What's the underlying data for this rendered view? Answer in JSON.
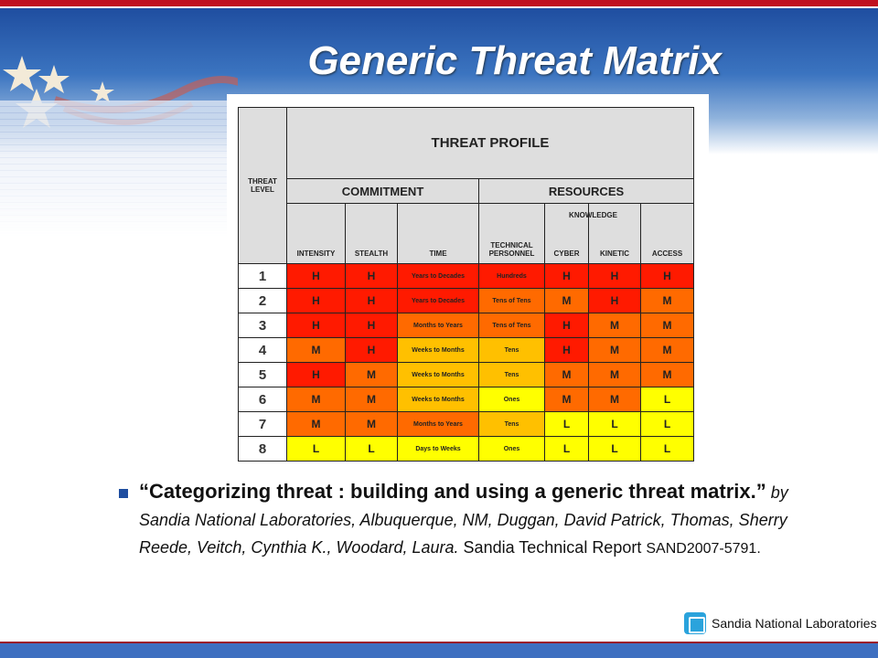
{
  "slide": {
    "title": "Generic Threat Matrix"
  },
  "matrix": {
    "threat_profile": "THREAT PROFILE",
    "threat_level": "THREAT LEVEL",
    "commitment": "COMMITMENT",
    "resources": "RESOURCES",
    "knowledge": "KNOWLEDGE",
    "columns": [
      "INTENSITY",
      "STEALTH",
      "TIME",
      "TECHNICAL PERSONNEL",
      "CYBER",
      "KINETIC",
      "ACCESS"
    ],
    "colors": {
      "red": "#ff1a00",
      "orange": "#ff6a00",
      "amber": "#ffc000",
      "yellow": "#ffff00"
    },
    "rows": [
      {
        "level": "1",
        "cells": [
          "H",
          "H",
          "Years to Decades",
          "Hundreds",
          "H",
          "H",
          "H"
        ],
        "fills": [
          "red",
          "red",
          "red",
          "red",
          "red",
          "red",
          "red"
        ]
      },
      {
        "level": "2",
        "cells": [
          "H",
          "H",
          "Years to Decades",
          "Tens of Tens",
          "M",
          "H",
          "M"
        ],
        "fills": [
          "red",
          "red",
          "red",
          "orange",
          "orange",
          "red",
          "orange"
        ]
      },
      {
        "level": "3",
        "cells": [
          "H",
          "H",
          "Months to Years",
          "Tens of Tens",
          "H",
          "M",
          "M"
        ],
        "fills": [
          "red",
          "red",
          "orange",
          "orange",
          "red",
          "orange",
          "orange"
        ]
      },
      {
        "level": "4",
        "cells": [
          "M",
          "H",
          "Weeks to Months",
          "Tens",
          "H",
          "M",
          "M"
        ],
        "fills": [
          "orange",
          "red",
          "amber",
          "amber",
          "red",
          "orange",
          "orange"
        ]
      },
      {
        "level": "5",
        "cells": [
          "H",
          "M",
          "Weeks to Months",
          "Tens",
          "M",
          "M",
          "M"
        ],
        "fills": [
          "red",
          "orange",
          "amber",
          "amber",
          "orange",
          "orange",
          "orange"
        ]
      },
      {
        "level": "6",
        "cells": [
          "M",
          "M",
          "Weeks to Months",
          "Ones",
          "M",
          "M",
          "L"
        ],
        "fills": [
          "orange",
          "orange",
          "amber",
          "yellow",
          "orange",
          "orange",
          "yellow"
        ]
      },
      {
        "level": "7",
        "cells": [
          "M",
          "M",
          "Months to Years",
          "Tens",
          "L",
          "L",
          "L"
        ],
        "fills": [
          "orange",
          "orange",
          "orange",
          "amber",
          "yellow",
          "yellow",
          "yellow"
        ]
      },
      {
        "level": "8",
        "cells": [
          "L",
          "L",
          "Days to Weeks",
          "Ones",
          "L",
          "L",
          "L"
        ],
        "fills": [
          "yellow",
          "yellow",
          "yellow",
          "yellow",
          "yellow",
          "yellow",
          "yellow"
        ]
      }
    ]
  },
  "citation": {
    "title": "“Categorizing threat : building and using a generic threat matrix.”",
    "authors": "by Sandia National Laboratories, Albuquerque, NM, Duggan, David Patrick, Thomas, Sherry Reede, Veitch, Cynthia K., Woodard, Laura.",
    "report": "Sandia Technical Report",
    "number": "SAND2007-5791."
  },
  "logo": {
    "text": "Sandia National Laboratories"
  }
}
